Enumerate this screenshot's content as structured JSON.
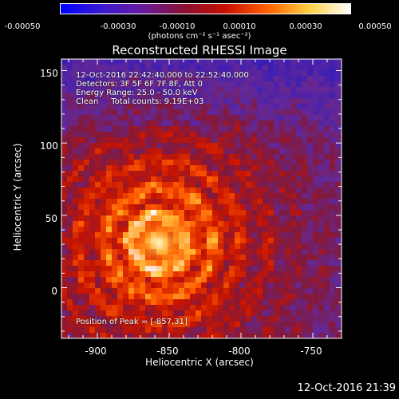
{
  "colorbar": {
    "ticks": [
      "-0.00050",
      "-0.00030",
      "-0.00010",
      "0.00010",
      "0.00030",
      "0.00050"
    ],
    "units": "(photons cm⁻² s⁻¹ asec⁻²)",
    "colors": [
      "#0000ff",
      "#3a1ad0",
      "#6a1b9a",
      "#8a1030",
      "#c81000",
      "#ff6000",
      "#ffd040",
      "#ffffff"
    ]
  },
  "header": {
    "title": "Reconstructed RHESSI Image",
    "time_range": "12-Oct-2016 22:42:40.000 to 22:52:40.000",
    "detectors": "Detectors: 3F 5F 6F 7F 8F, Att 0",
    "energy": "Energy Range: 25.0 - 50.0 keV",
    "clean": "Clean     Total counts: 9.19E+03",
    "peak": "Position of Peak = [-857,31]"
  },
  "footer": {
    "timestamp": "12-Oct-2016 21:39"
  },
  "chart_data": {
    "type": "heatmap",
    "title": "Reconstructed RHESSI Image",
    "xlabel": "Heliocentric X (arcsec)",
    "ylabel": "Heliocentric Y (arcsec)",
    "xlim": [
      -925,
      -730
    ],
    "ylim": [
      -35,
      158
    ],
    "xticks": [
      -900,
      -850,
      -800,
      -750
    ],
    "yticks": [
      0,
      50,
      100,
      150
    ],
    "xtick_labels": [
      "-900",
      "-850",
      "-800",
      "-750"
    ],
    "ytick_labels": [
      "0",
      "50",
      "100",
      "150"
    ],
    "peak": [
      -857,
      31
    ],
    "value_range": [
      -0.0005,
      0.0005
    ],
    "colormap": "rhessi"
  }
}
